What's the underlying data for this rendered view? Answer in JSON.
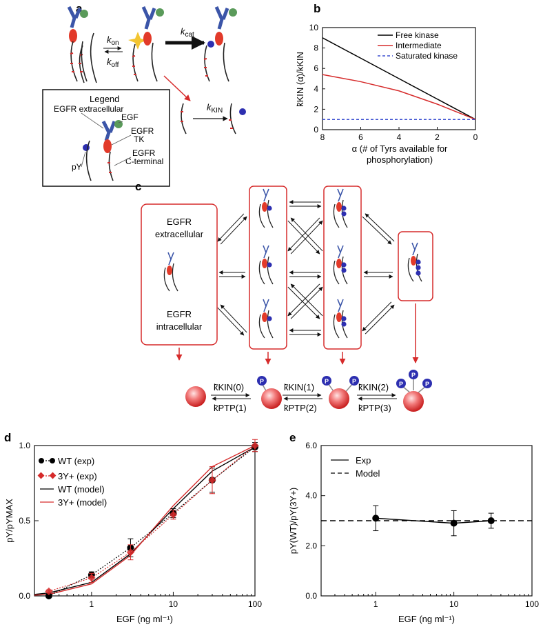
{
  "panel_labels": {
    "a": "a",
    "b": "b",
    "c": "c",
    "d": "d",
    "e": "e"
  },
  "panel_a": {
    "k_on": "k",
    "k_on_sub": "on",
    "k_off": "k",
    "k_off_sub": "off",
    "k_cat": "k",
    "k_cat_sub": "cat",
    "k_kin": "k",
    "k_kin_sub": "KIN",
    "legend_title": "Legend",
    "legend_items": {
      "egfr_extracellular": "EGFR extracellular",
      "egf": "EGF",
      "egfr_tk_1": "EGFR",
      "egfr_tk_2": "TK",
      "egfr_ct_1": "EGFR",
      "egfr_ct_2": "C-terminal",
      "py": "pY"
    },
    "colors": {
      "receptor_blue": "#3b55a8",
      "egf_green": "#5a9a5a",
      "tk_red": "#e23a2a",
      "py_blue": "#2d2fb0",
      "atp_yellow": "#f3c531"
    }
  },
  "panel_b": {
    "ylabel": "k̃KIN (α)/kKIN",
    "xlabel_line1": "α (# of Tyrs available for",
    "xlabel_line2": "phosphorylation)",
    "chart_data": {
      "type": "line",
      "xlim": [
        8,
        0
      ],
      "ylim": [
        0,
        10
      ],
      "xticks": [
        8,
        6,
        4,
        2,
        0
      ],
      "yticks": [
        0,
        2,
        4,
        6,
        8,
        10
      ],
      "legend_placement": "top-right",
      "series": [
        {
          "name": "Free kinase",
          "color": "#000000",
          "dash": "solid",
          "x": [
            8,
            6,
            4,
            2,
            0
          ],
          "y": [
            9.0,
            7.0,
            5.0,
            3.0,
            1.0
          ]
        },
        {
          "name": "Intermediate",
          "color": "#d62b2b",
          "dash": "solid",
          "x": [
            8,
            6,
            4,
            2,
            0
          ],
          "y": [
            5.4,
            4.7,
            3.8,
            2.5,
            1.0
          ]
        },
        {
          "name": "Saturated kinase",
          "color": "#3b4fd0",
          "dash": "dashed",
          "x": [
            8,
            0
          ],
          "y": [
            1.0,
            1.0
          ]
        }
      ]
    }
  },
  "panel_c": {
    "box_labels": {
      "extracellular_1": "EGFR",
      "extracellular_2": "extracellular",
      "intracellular_1": "EGFR",
      "intracellular_2": "intracellular"
    },
    "rates": {
      "kin0": "k̃KIN(0)",
      "kin1": "k̃KIN(1)",
      "kin2": "k̃KIN(2)",
      "ptp1": "k̃PTP(1)",
      "ptp2": "k̃PTP(2)",
      "ptp3": "k̃PTP(3)"
    },
    "phospho_label": "P"
  },
  "panel_d": {
    "ylabel": "pY/pYMAX",
    "xlabel": "EGF (ng ml⁻¹)",
    "chart_data": {
      "type": "line",
      "xscale": "log",
      "xlim": [
        0.2,
        100
      ],
      "ylim": [
        0,
        1.0
      ],
      "xticks": [
        1,
        10,
        100
      ],
      "xtick_labels": [
        "1",
        "10",
        "100"
      ],
      "yticks": [
        0.0,
        0.5,
        1.0
      ],
      "ytick_labels": [
        "0.0",
        "0.5",
        "1.0"
      ],
      "legend_placement": "top-left",
      "series": [
        {
          "name": "WT (exp)",
          "color": "#000000",
          "style": "dotted-marker",
          "marker": "circle",
          "x": [
            0.3,
            1,
            3,
            10,
            30,
            100
          ],
          "y": [
            0.0,
            0.14,
            0.32,
            0.55,
            0.77,
            0.99
          ],
          "err": [
            0.01,
            0.02,
            0.06,
            0.03,
            0.08,
            0.03
          ]
        },
        {
          "name": "3Y+ (exp)",
          "color": "#d62b2b",
          "style": "dotted-marker",
          "marker": "diamond",
          "x": [
            0.3,
            1,
            3,
            10,
            30,
            100
          ],
          "y": [
            0.03,
            0.12,
            0.29,
            0.54,
            0.77,
            1.0
          ],
          "err": [
            0.01,
            0.03,
            0.05,
            0.03,
            0.09,
            0.04
          ]
        },
        {
          "name": "WT (model)",
          "color": "#000000",
          "style": "solid",
          "x": [
            0.2,
            0.3,
            1,
            3,
            10,
            30,
            100
          ],
          "y": [
            0.01,
            0.02,
            0.09,
            0.28,
            0.58,
            0.83,
            0.99
          ]
        },
        {
          "name": "3Y+ (model)",
          "color": "#d62b2b",
          "style": "solid",
          "x": [
            0.2,
            0.3,
            1,
            3,
            10,
            30,
            100
          ],
          "y": [
            0.005,
            0.01,
            0.08,
            0.27,
            0.6,
            0.86,
            1.0
          ]
        }
      ]
    }
  },
  "panel_e": {
    "ylabel": "pY(WT)/pY(3Y+)",
    "xlabel": "EGF (ng ml⁻¹)",
    "chart_data": {
      "type": "line",
      "xscale": "log",
      "xlim": [
        0.2,
        100
      ],
      "ylim": [
        0,
        6.0
      ],
      "xticks": [
        1,
        10,
        100
      ],
      "xtick_labels": [
        "1",
        "10",
        "100"
      ],
      "yticks": [
        0.0,
        2.0,
        4.0,
        6.0
      ],
      "ytick_labels": [
        "0.0",
        "2.0",
        "4.0",
        "6.0"
      ],
      "legend_placement": "top-left",
      "series": [
        {
          "name": "Exp",
          "color": "#000000",
          "style": "solid-marker",
          "x": [
            1,
            10,
            30
          ],
          "y": [
            3.1,
            2.9,
            3.0
          ],
          "err": [
            0.5,
            0.5,
            0.3
          ]
        },
        {
          "name": "Model",
          "color": "#000000",
          "style": "dashed",
          "x": [
            0.2,
            100
          ],
          "y": [
            3.0,
            3.0
          ]
        }
      ]
    }
  }
}
